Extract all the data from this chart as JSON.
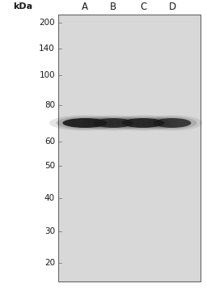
{
  "fig_width": 2.56,
  "fig_height": 3.61,
  "dpi": 100,
  "background_color": "#d8d8d8",
  "outer_bg": "#ffffff",
  "kda_label": "kDa",
  "lane_labels": [
    "A",
    "B",
    "C",
    "D"
  ],
  "mw_markers": [
    200,
    140,
    100,
    80,
    60,
    50,
    40,
    30,
    20
  ],
  "gel_border_color": "#666666",
  "text_color": "#1a1a1a",
  "font_size_kda": 8,
  "font_size_markers": 7.5,
  "font_size_lanes": 8.5,
  "band_color": "#1a1a1a",
  "band_intensities": [
    0.92,
    0.82,
    0.88,
    0.78
  ]
}
